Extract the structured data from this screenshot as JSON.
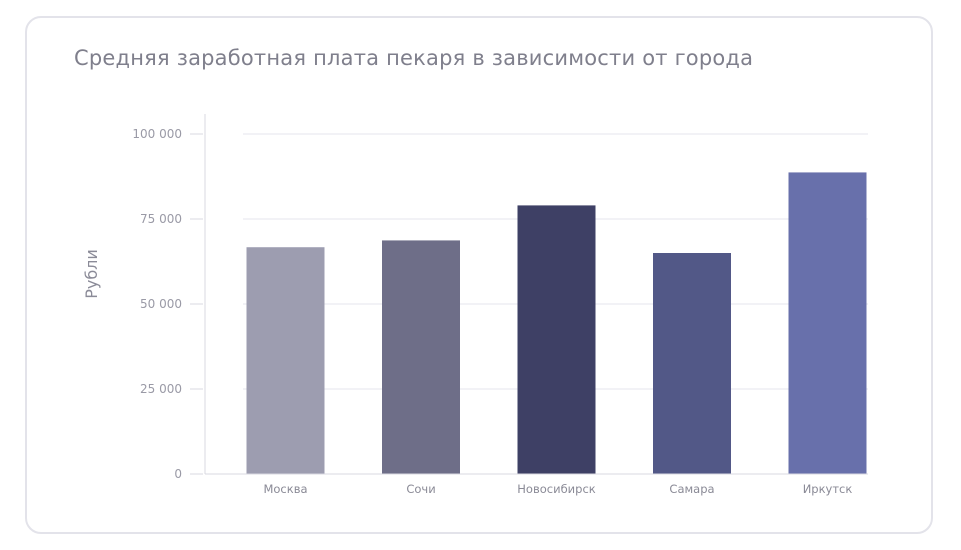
{
  "chart_data": {
    "type": "bar",
    "title": "Средняя заработная плата пекаря в зависимости от города",
    "xlabel": "",
    "ylabel": "Рубли",
    "categories": [
      "Москва",
      "Сочи",
      "Новосибирск",
      "Самара",
      "Иркутск"
    ],
    "values": [
      66700,
      68700,
      79000,
      65000,
      88700
    ],
    "colors": [
      "#9d9db0",
      "#6e6e88",
      "#3e4065",
      "#525887",
      "#6870ab"
    ],
    "ylim": [
      0,
      100000
    ],
    "yticks": [
      0,
      25000,
      50000,
      75000,
      100000
    ],
    "ytick_labels": [
      "0",
      "25 000",
      "50 000",
      "75 000",
      "100 000"
    ],
    "grid": true,
    "legend": "none"
  },
  "colors": {
    "grid": "#e6e6ec",
    "axis": "#d8d8e0",
    "border": "#e3e3ea"
  }
}
